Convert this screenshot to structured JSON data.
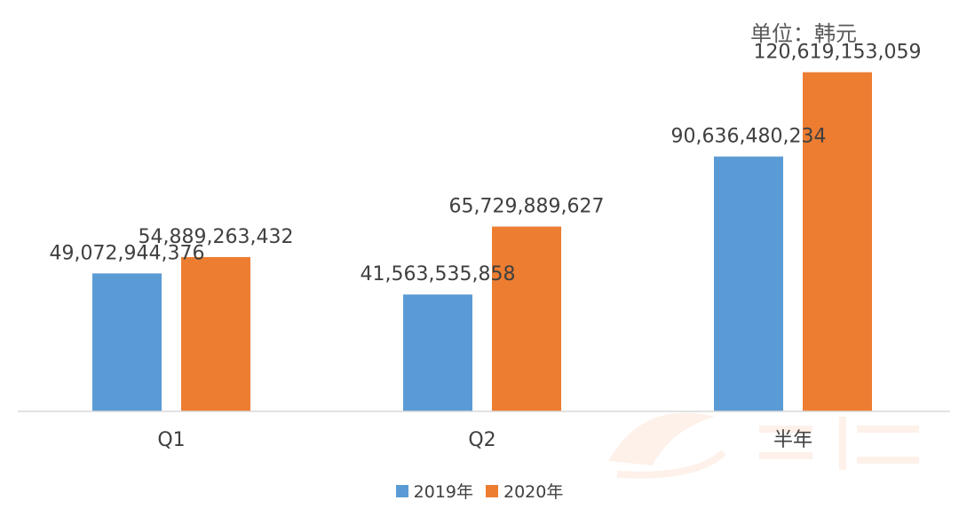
{
  "unit_label": "单位：韩元",
  "colors": {
    "series_2019": "#5B9BD5",
    "series_2020": "#ED7D31",
    "axis": "#D9D9D9",
    "text": "#404040"
  },
  "chart_data": {
    "type": "bar",
    "title": "",
    "xlabel": "",
    "ylabel": "",
    "categories": [
      "Q1",
      "Q2",
      "半年"
    ],
    "series": [
      {
        "name": "2019年",
        "values": [
          49072944376,
          41563535858,
          90636480234
        ],
        "labels": [
          "49,072,944,376",
          "41,563,535,858",
          "90,636,480,234"
        ]
      },
      {
        "name": "2020年",
        "values": [
          54889263432,
          65729889627,
          120619153059
        ],
        "labels": [
          "54,889,263,432",
          "65,729,889,627",
          "120,619,153,059"
        ]
      }
    ],
    "ylim": [
      0,
      140000000000
    ],
    "grid": false,
    "legend": "bottom"
  }
}
